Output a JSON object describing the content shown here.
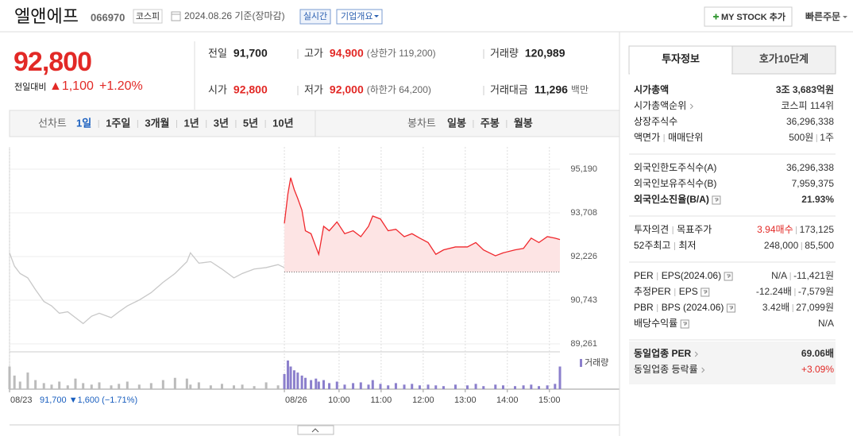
{
  "header": {
    "name": "엘앤에프",
    "code": "066970",
    "market": "코스피",
    "date": "2024.08.26 기준(장마감)",
    "realtime": "실시간",
    "overview": "기업개요",
    "mystock": "MY STOCK 추가",
    "quick_order": "빠른주문"
  },
  "quote": {
    "price": "92,800",
    "change_label": "전일대비",
    "change": "▲1,100",
    "change_pct": "+1.20%",
    "fields": [
      {
        "label": "전일",
        "value": "91,700"
      },
      {
        "label": "고가",
        "value": "94,900",
        "note": "(상한가 119,200)",
        "color": "#e22926"
      },
      {
        "label": "거래량",
        "value": "120,989"
      },
      {
        "label": "시가",
        "value": "92,800",
        "color": "#e22926"
      },
      {
        "label": "저가",
        "value": "92,000",
        "note": "(하한가 64,200)",
        "color": "#e22926"
      },
      {
        "label": "거래대금",
        "value": "11,296",
        "note": "백만"
      }
    ]
  },
  "tabs": {
    "line_label": "선차트",
    "line": [
      "1일",
      "1주일",
      "3개월",
      "1년",
      "3년",
      "5년",
      "10년"
    ],
    "line_active_index": 0,
    "candle_label": "봉차트",
    "candle": [
      "일봉",
      "주봉",
      "월봉"
    ]
  },
  "chart_data": {
    "type": "line",
    "xlim": [
      -410,
      375
    ],
    "xticks": [
      {
        "value": -410,
        "label": "08/23"
      },
      {
        "value": -18,
        "label": "08/26"
      },
      {
        "value": 60,
        "label": "10:00"
      },
      {
        "value": 120,
        "label": "11:00"
      },
      {
        "value": 180,
        "label": "12:00"
      },
      {
        "value": 240,
        "label": "13:00"
      },
      {
        "value": 300,
        "label": "14:00"
      },
      {
        "value": 360,
        "label": "15:00"
      }
    ],
    "ylim": [
      89261,
      95190
    ],
    "yticks": [
      {
        "value": 95190,
        "label": "95,190"
      },
      {
        "value": 93708,
        "label": "93,708"
      },
      {
        "value": 92226,
        "label": "92,226"
      },
      {
        "value": 90743,
        "label": "90,743"
      },
      {
        "value": 89261,
        "label": "89,261"
      }
    ],
    "y2lim": [
      0,
      4000
    ],
    "grid": true,
    "reference_line": 91700,
    "prev_summary": "91,700 ▼1,600 (−1.71%)",
    "series": [
      {
        "color": "#c8c8c8",
        "x": [
          -410,
          -403,
          -395,
          -384,
          -373,
          -361,
          -350,
          -339,
          -327,
          -316,
          -305,
          -293,
          -282,
          -265,
          -254,
          -242,
          -225,
          -208,
          -191,
          -174,
          -157,
          -152,
          -140,
          -123,
          -107,
          -90,
          -78,
          -61,
          -44,
          -27,
          -18
        ],
        "values": [
          92350,
          91900,
          91650,
          91500,
          91100,
          90700,
          90550,
          90300,
          90350,
          90150,
          89950,
          90200,
          90300,
          90150,
          90350,
          90550,
          90750,
          91000,
          91350,
          91650,
          92050,
          92350,
          92000,
          92050,
          91800,
          91500,
          91650,
          91800,
          91850,
          91950,
          91850
        ]
      },
      {
        "color": "#f0282d",
        "fill": "#fde4e4",
        "x": [
          -18,
          -13,
          -9,
          -4,
          1,
          7,
          12,
          20,
          27,
          31,
          38,
          46,
          57,
          68,
          80,
          91,
          102,
          108,
          119,
          130,
          141,
          153,
          164,
          175,
          187,
          198,
          209,
          226,
          243,
          255,
          266,
          283,
          294,
          311,
          323,
          334,
          345,
          357,
          368,
          375
        ],
        "values": [
          93350,
          94350,
          94900,
          94500,
          94200,
          93800,
          93100,
          93000,
          92550,
          92300,
          93250,
          93100,
          93400,
          93000,
          93100,
          92900,
          93250,
          93600,
          93500,
          93100,
          93150,
          92900,
          93000,
          92850,
          92700,
          92300,
          92450,
          92550,
          92550,
          92700,
          92450,
          92250,
          92350,
          92450,
          92500,
          92850,
          92700,
          92900,
          92850,
          92800
        ]
      },
      {
        "type": "bar",
        "axis": "y2",
        "color": "#bbbbbb",
        "x": [
          -410,
          -403,
          -395,
          -384,
          -373,
          -361,
          -350,
          -339,
          -327,
          -316,
          -305,
          -293,
          -282,
          -265,
          -254,
          -242,
          -225,
          -208,
          -191,
          -174,
          -157,
          -152,
          -140,
          -123,
          -107,
          -90,
          -78,
          -61,
          -44,
          -27,
          -18
        ],
        "values": [
          3000,
          1800,
          1000,
          2200,
          1200,
          800,
          600,
          1000,
          500,
          1400,
          800,
          600,
          900,
          500,
          700,
          1000,
          600,
          800,
          1200,
          1500,
          1400,
          600,
          900,
          500,
          700,
          500,
          600,
          400,
          900,
          500,
          1200
        ]
      },
      {
        "type": "bar",
        "axis": "y2",
        "name": "거래량",
        "color": "#8b7fcc",
        "x": [
          -18,
          -13,
          -9,
          -4,
          1,
          7,
          12,
          20,
          27,
          31,
          38,
          46,
          57,
          68,
          80,
          91,
          102,
          108,
          119,
          130,
          141,
          153,
          164,
          175,
          187,
          198,
          209,
          226,
          243,
          255,
          266,
          283,
          294,
          311,
          323,
          334,
          345,
          357,
          368,
          375
        ],
        "values": [
          2000,
          3800,
          3000,
          2500,
          2200,
          1800,
          1500,
          1200,
          1400,
          1000,
          1200,
          800,
          1000,
          600,
          800,
          900,
          600,
          1200,
          700,
          500,
          800,
          600,
          700,
          500,
          600,
          500,
          400,
          600,
          500,
          700,
          400,
          600,
          500,
          400,
          500,
          600,
          400,
          500,
          700,
          3000
        ]
      }
    ]
  },
  "info": {
    "tabs": [
      "투자정보",
      "호가10단계"
    ],
    "sections": [
      {
        "rows": [
          {
            "label": [
              "시가총액"
            ],
            "value": [
              "3조 3,683억원"
            ],
            "bold": true
          },
          {
            "label": [
              "시가총액순위"
            ],
            "icon": "arrow",
            "value": [
              "코스피 114위"
            ]
          },
          {
            "label": [
              "상장주식수"
            ],
            "value": [
              "36,296,338"
            ]
          },
          {
            "label": [
              "액면가",
              "매매단위"
            ],
            "value": [
              "500원",
              "1주"
            ]
          }
        ]
      },
      {
        "rows": [
          {
            "label": [
              "외국인한도주식수(A)"
            ],
            "value": [
              "36,296,338"
            ]
          },
          {
            "label": [
              "외국인보유주식수(B)"
            ],
            "value": [
              "7,959,375"
            ]
          },
          {
            "label": [
              "외국인소진율(B/A)"
            ],
            "icon": "help",
            "value": [
              "21.93%"
            ],
            "bold": true
          }
        ]
      },
      {
        "rows": [
          {
            "label": [
              "투자의견",
              "목표주가"
            ],
            "value": [
              "3.94매수",
              "173,125"
            ],
            "colors": [
              "#e22926",
              "#333333"
            ]
          },
          {
            "label": [
              "52주최고",
              "최저"
            ],
            "value": [
              "248,000",
              "85,500"
            ]
          }
        ]
      },
      {
        "rows": [
          {
            "label": [
              "PER",
              "EPS(2024.06)"
            ],
            "icon": "help",
            "value": [
              "N/A",
              "-11,421원"
            ]
          },
          {
            "label": [
              "추정PER",
              "EPS"
            ],
            "icon": "help",
            "value": [
              "-12.24배",
              "-7,579원"
            ]
          },
          {
            "label": [
              "PBR",
              "BPS (2024.06)"
            ],
            "icon": "help",
            "value": [
              "3.42배",
              "27,099원"
            ]
          },
          {
            "label": [
              "배당수익률"
            ],
            "icon": "help",
            "value": [
              "N/A"
            ]
          }
        ]
      },
      {
        "shaded": true,
        "rows": [
          {
            "label": [
              "동일업종 PER"
            ],
            "icon": "arrow",
            "value": [
              "69.06배"
            ],
            "bold": true
          },
          {
            "label": [
              "동일업종 등락률"
            ],
            "icon": "arrow",
            "value": [
              "+3.09%"
            ],
            "colors": [
              "#e22926"
            ]
          }
        ]
      }
    ]
  }
}
